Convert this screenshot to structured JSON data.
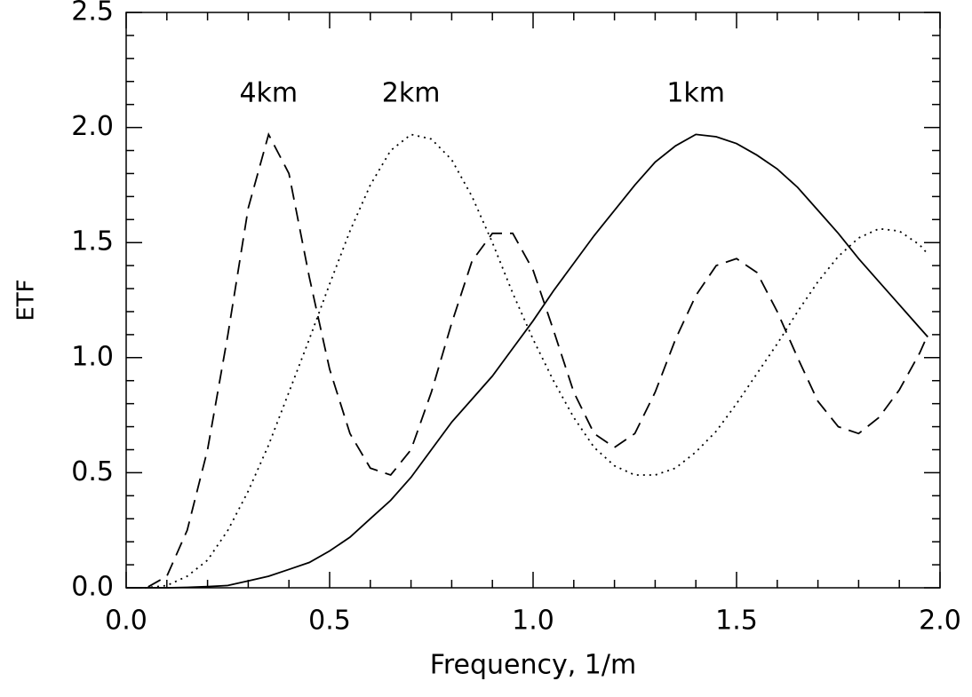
{
  "chart_data": {
    "type": "line",
    "xlabel": "Frequency, 1/m",
    "ylabel": "ETF",
    "x": [
      0,
      0.05,
      0.1,
      0.15,
      0.2,
      0.25,
      0.3,
      0.35,
      0.4,
      0.45,
      0.5,
      0.55,
      0.6,
      0.65,
      0.7,
      0.75,
      0.8,
      0.85,
      0.9,
      0.95,
      1.0,
      1.05,
      1.1,
      1.15,
      1.2,
      1.25,
      1.3,
      1.35,
      1.4,
      1.45,
      1.5,
      1.55,
      1.6,
      1.65,
      1.7,
      1.75,
      1.8,
      1.85,
      1.9,
      1.95,
      1.97
    ],
    "series": [
      {
        "name": "1km",
        "color": "#000000",
        "dash": "solid",
        "values": [
          0,
          0,
          0,
          0.002,
          0.005,
          0.01,
          0.03,
          0.05,
          0.08,
          0.11,
          0.16,
          0.22,
          0.3,
          0.38,
          0.48,
          0.6,
          0.72,
          0.82,
          0.92,
          1.04,
          1.16,
          1.29,
          1.41,
          1.53,
          1.64,
          1.75,
          1.85,
          1.92,
          1.97,
          1.96,
          1.93,
          1.88,
          1.82,
          1.74,
          1.64,
          1.54,
          1.43,
          1.33,
          1.23,
          1.13,
          1.09
        ]
      },
      {
        "name": "2km",
        "color": "#000000",
        "dash": "dotted",
        "values": [
          0,
          0,
          0.01,
          0.05,
          0.12,
          0.25,
          0.42,
          0.62,
          0.85,
          1.08,
          1.32,
          1.55,
          1.75,
          1.9,
          1.97,
          1.95,
          1.86,
          1.7,
          1.5,
          1.28,
          1.08,
          0.9,
          0.74,
          0.61,
          0.53,
          0.49,
          0.49,
          0.52,
          0.59,
          0.68,
          0.8,
          0.93,
          1.06,
          1.2,
          1.33,
          1.44,
          1.52,
          1.56,
          1.55,
          1.49,
          1.45
        ]
      },
      {
        "name": "4km",
        "color": "#000000",
        "dash": "dashed",
        "values": [
          0,
          0,
          0.05,
          0.25,
          0.6,
          1.1,
          1.65,
          1.97,
          1.8,
          1.35,
          0.95,
          0.67,
          0.52,
          0.49,
          0.6,
          0.85,
          1.15,
          1.42,
          1.54,
          1.54,
          1.38,
          1.12,
          0.85,
          0.67,
          0.61,
          0.67,
          0.85,
          1.08,
          1.27,
          1.4,
          1.43,
          1.37,
          1.2,
          1.0,
          0.81,
          0.7,
          0.67,
          0.74,
          0.86,
          1.02,
          1.1
        ]
      }
    ],
    "xlim": [
      0,
      2
    ],
    "ylim": [
      0,
      2.5
    ],
    "xticks": [
      {
        "value": 0,
        "label": "0.0"
      },
      0.5,
      {
        "value": 1,
        "label": "1.0"
      },
      1.5,
      {
        "value": 2,
        "label": "2.0"
      }
    ],
    "yticks": [
      {
        "value": 0,
        "label": "0.0"
      },
      0.5,
      {
        "value": 1,
        "label": "1.0"
      },
      1.5,
      {
        "value": 2,
        "label": "2.0"
      },
      2.5
    ],
    "grid": false
  }
}
